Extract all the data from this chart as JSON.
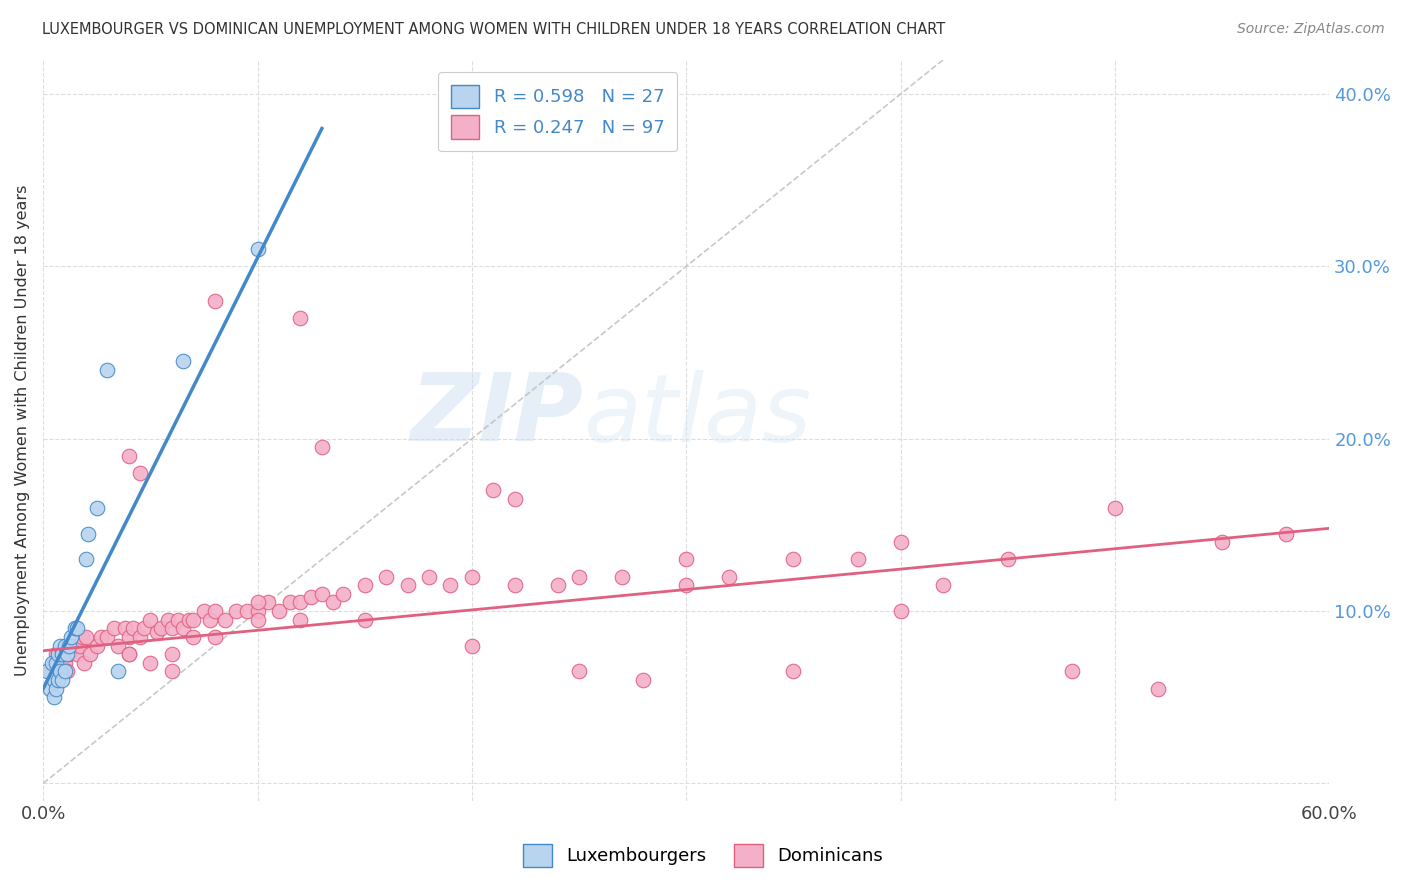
{
  "title": "LUXEMBOURGER VS DOMINICAN UNEMPLOYMENT AMONG WOMEN WITH CHILDREN UNDER 18 YEARS CORRELATION CHART",
  "source": "Source: ZipAtlas.com",
  "ylabel": "Unemployment Among Women with Children Under 18 years",
  "xlim": [
    0.0,
    0.6
  ],
  "ylim": [
    -0.01,
    0.42
  ],
  "lux_R": 0.598,
  "lux_N": 27,
  "dom_R": 0.247,
  "dom_N": 97,
  "lux_color": "#b8d4ee",
  "dom_color": "#f4b0c8",
  "lux_line_color": "#4488cc",
  "dom_line_color": "#e06080",
  "watermark_zip": "ZIP",
  "watermark_atlas": "atlas",
  "background_color": "#ffffff",
  "lux_x": [
    0.002,
    0.003,
    0.004,
    0.005,
    0.005,
    0.006,
    0.006,
    0.007,
    0.007,
    0.008,
    0.008,
    0.009,
    0.009,
    0.01,
    0.01,
    0.011,
    0.012,
    0.013,
    0.015,
    0.016,
    0.02,
    0.021,
    0.025,
    0.03,
    0.035,
    0.065,
    0.1
  ],
  "lux_y": [
    0.065,
    0.055,
    0.07,
    0.06,
    0.05,
    0.07,
    0.055,
    0.075,
    0.06,
    0.08,
    0.065,
    0.075,
    0.06,
    0.08,
    0.065,
    0.075,
    0.08,
    0.085,
    0.09,
    0.09,
    0.13,
    0.145,
    0.16,
    0.24,
    0.065,
    0.245,
    0.31
  ],
  "lux_trend_x": [
    0.0,
    0.13
  ],
  "lux_trend_y": [
    0.055,
    0.38
  ],
  "dom_x": [
    0.003,
    0.005,
    0.006,
    0.007,
    0.008,
    0.009,
    0.01,
    0.011,
    0.012,
    0.013,
    0.015,
    0.016,
    0.017,
    0.018,
    0.019,
    0.02,
    0.022,
    0.025,
    0.027,
    0.03,
    0.033,
    0.035,
    0.038,
    0.04,
    0.042,
    0.045,
    0.047,
    0.05,
    0.053,
    0.055,
    0.058,
    0.06,
    0.063,
    0.065,
    0.068,
    0.07,
    0.075,
    0.078,
    0.08,
    0.085,
    0.09,
    0.095,
    0.1,
    0.105,
    0.11,
    0.115,
    0.12,
    0.125,
    0.13,
    0.135,
    0.04,
    0.045,
    0.14,
    0.15,
    0.16,
    0.17,
    0.18,
    0.19,
    0.2,
    0.21,
    0.22,
    0.24,
    0.25,
    0.27,
    0.3,
    0.32,
    0.35,
    0.38,
    0.4,
    0.42,
    0.45,
    0.48,
    0.5,
    0.52,
    0.55,
    0.58,
    0.12,
    0.13,
    0.1,
    0.08,
    0.07,
    0.06,
    0.05,
    0.04,
    0.25,
    0.22,
    0.2,
    0.35,
    0.28,
    0.15,
    0.12,
    0.1,
    0.08,
    0.06,
    0.04,
    0.3,
    0.4
  ],
  "dom_y": [
    0.065,
    0.07,
    0.075,
    0.065,
    0.07,
    0.075,
    0.07,
    0.065,
    0.075,
    0.08,
    0.08,
    0.075,
    0.08,
    0.085,
    0.07,
    0.085,
    0.075,
    0.08,
    0.085,
    0.085,
    0.09,
    0.08,
    0.09,
    0.085,
    0.09,
    0.085,
    0.09,
    0.095,
    0.088,
    0.09,
    0.095,
    0.09,
    0.095,
    0.09,
    0.095,
    0.095,
    0.1,
    0.095,
    0.1,
    0.095,
    0.1,
    0.1,
    0.1,
    0.105,
    0.1,
    0.105,
    0.105,
    0.108,
    0.11,
    0.105,
    0.19,
    0.18,
    0.11,
    0.115,
    0.12,
    0.115,
    0.12,
    0.115,
    0.12,
    0.17,
    0.115,
    0.115,
    0.12,
    0.12,
    0.115,
    0.12,
    0.13,
    0.13,
    0.14,
    0.115,
    0.13,
    0.065,
    0.16,
    0.055,
    0.14,
    0.145,
    0.27,
    0.195,
    0.105,
    0.28,
    0.085,
    0.065,
    0.07,
    0.075,
    0.065,
    0.165,
    0.08,
    0.065,
    0.06,
    0.095,
    0.095,
    0.095,
    0.085,
    0.075,
    0.075,
    0.13,
    0.1
  ],
  "dom_trend_x": [
    0.0,
    0.6
  ],
  "dom_trend_y": [
    0.077,
    0.148
  ]
}
